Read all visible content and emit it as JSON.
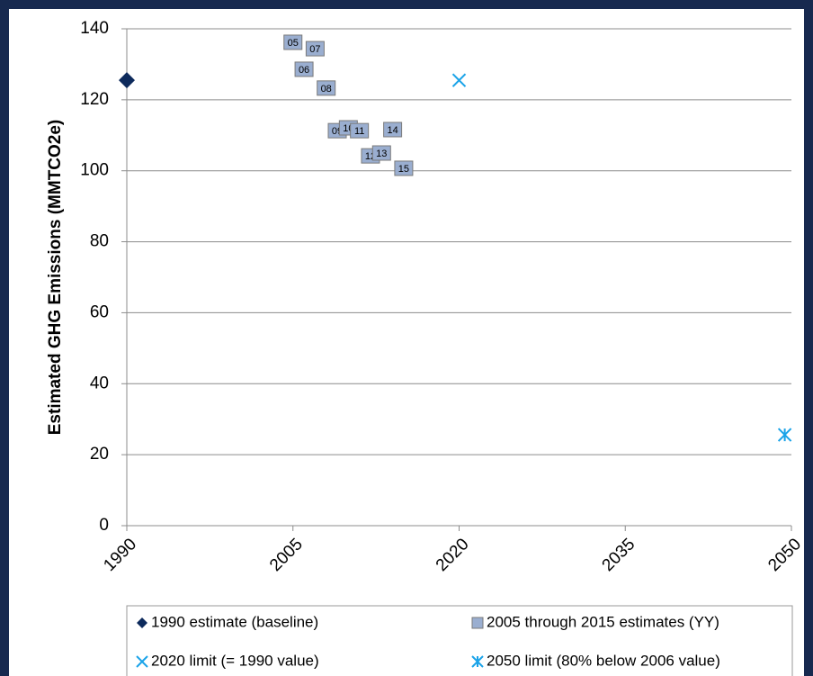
{
  "chart_data": {
    "type": "scatter",
    "y_label": "Estimated GHG Emissions (MMTCO2e)",
    "xlim": [
      1990,
      2050
    ],
    "xticks": [
      1990,
      2005,
      2020,
      2035,
      2050
    ],
    "ylim": [
      0,
      140
    ],
    "yticks": [
      0,
      20,
      40,
      60,
      80,
      100,
      120,
      140
    ],
    "grid": true,
    "legend_position": "bottom",
    "series": [
      {
        "name": "1990 estimate (baseline)",
        "marker": "diamond",
        "color": "#0d2a5c",
        "x": [
          1990
        ],
        "values": [
          125.5
        ]
      },
      {
        "name": "2005 through 2015 estimates (YY)",
        "marker": "square",
        "color": "#9aaed0",
        "x": [
          2005,
          2006,
          2007,
          2008,
          2009,
          2010,
          2011,
          2012,
          2013,
          2014,
          2015
        ],
        "values": [
          136.2,
          128.6,
          134.4,
          123.3,
          111.3,
          112.1,
          111.3,
          104.2,
          105,
          111.6,
          100.7
        ],
        "labels": [
          "05",
          "06",
          "07",
          "08",
          "09",
          "10",
          "11",
          "12",
          "13",
          "14",
          "15"
        ]
      },
      {
        "name": "2020 limit (= 1990 value)",
        "marker": "x",
        "color": "#1aa3e8",
        "x": [
          2020
        ],
        "values": [
          125.5
        ]
      },
      {
        "name": "2050 limit (80% below 2006 value)",
        "marker": "asterisk",
        "color": "#1aa3e8",
        "x": [
          2049.4
        ],
        "values": [
          25.6
        ]
      }
    ]
  }
}
